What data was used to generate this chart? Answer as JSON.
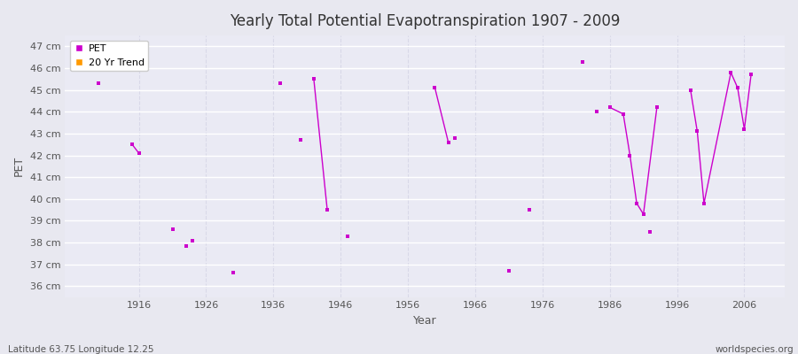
{
  "title": "Yearly Total Potential Evapotranspiration 1907 - 2009",
  "xlabel": "Year",
  "ylabel": "PET",
  "subtitle": "Latitude 63.75 Longitude 12.25",
  "watermark": "worldspecies.org",
  "ylim": [
    35.5,
    47.5
  ],
  "xlim": [
    1905,
    2012
  ],
  "yticks": [
    36,
    37,
    38,
    39,
    40,
    41,
    42,
    43,
    44,
    45,
    46,
    47
  ],
  "ytick_labels": [
    "36 cm",
    "37 cm",
    "38 cm",
    "39 cm",
    "40 cm",
    "41 cm",
    "42 cm",
    "43 cm",
    "44 cm",
    "45 cm",
    "46 cm",
    "47 cm"
  ],
  "xticks": [
    1916,
    1926,
    1936,
    1946,
    1956,
    1966,
    1976,
    1986,
    1996,
    2006
  ],
  "pet_color": "#cc00cc",
  "trend_color": "#ff9900",
  "bg_color": "#e8e8f0",
  "plot_bg_color": "#eaeaf4",
  "grid_color_solid": "#ffffff",
  "grid_color_dash": "#d8d8e8",
  "isolated_years": [
    1910,
    1916,
    1921,
    1923,
    1924,
    1930,
    1937,
    1940,
    1947,
    1963,
    1971,
    1974,
    1982,
    1984,
    1992
  ],
  "isolated_values": [
    45.3,
    42.1,
    38.6,
    37.85,
    38.1,
    36.6,
    45.3,
    42.7,
    38.3,
    42.8,
    36.7,
    39.5,
    46.3,
    44.0,
    38.5
  ],
  "line_segments": [
    {
      "years": [
        1915,
        1916
      ],
      "values": [
        42.5,
        42.1
      ]
    },
    {
      "years": [
        1942,
        1944
      ],
      "values": [
        45.5,
        39.5
      ]
    },
    {
      "years": [
        1960,
        1962
      ],
      "values": [
        45.1,
        42.6
      ]
    },
    {
      "years": [
        1986,
        1988,
        1989,
        1990,
        1991,
        1993
      ],
      "values": [
        44.2,
        43.9,
        42.0,
        39.8,
        39.3,
        44.2
      ]
    },
    {
      "years": [
        1998,
        1999,
        2000,
        2004,
        2005,
        2006,
        2007
      ],
      "values": [
        45.0,
        43.1,
        39.8,
        45.8,
        45.1,
        43.2,
        45.7
      ]
    }
  ]
}
